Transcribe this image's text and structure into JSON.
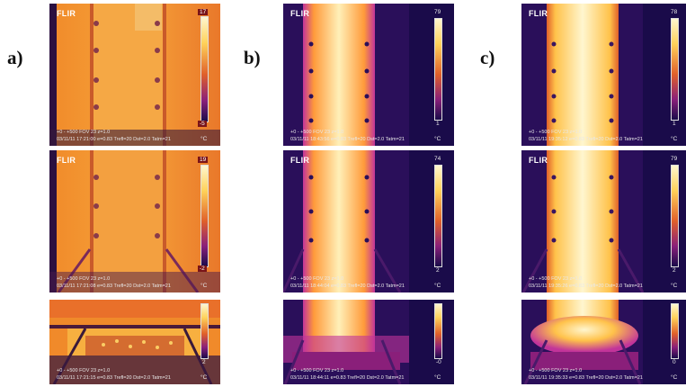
{
  "labels": {
    "a": "a)",
    "b": "b)",
    "c": "c)"
  },
  "colors": {
    "palette_low": "#1a0b4a",
    "palette_mid": "#c2349a",
    "palette_high": "#ffd25a",
    "palette_top": "#fff6cf"
  },
  "thermograms": {
    "a1": {
      "logo": "FLIR",
      "line1": "+0 - +500  FOV 23 z=1.0",
      "line2": "03/11/11 17:21:00 e=0.83 Trefl=20 Dst=2.0 Tatm=21",
      "scale_max": "17",
      "scale_min": "-5",
      "unit": "°C"
    },
    "a2": {
      "logo": "FLIR",
      "line1": "+0 - +500  FOV 23 z=1.0",
      "line2": "03/11/11 17:21:08 e=0.83 Trefl=20 Dst=2.0 Tatm=21",
      "scale_max": "19",
      "scale_min": "-2",
      "unit": "°C"
    },
    "a3": {
      "logo": "",
      "line1": "+0 - +500  FOV 23 z=1.0",
      "line2": "03/11/11 17:21:15 e=0.83 Trefl=20 Dst=2.0 Tatm=21",
      "scale_max": "",
      "scale_min": "2",
      "unit": "°C"
    },
    "b1": {
      "logo": "FLIR",
      "line1": "+0 - +500  FOV 23 z=1.0",
      "line2": "03/11/11 18:43:56 e=0.83 Trefl=20 Dst=2.0 Tatm=21",
      "scale_max": "79",
      "scale_min": "1",
      "unit": "°C"
    },
    "b2": {
      "logo": "FLIR",
      "line1": "+0 - +500  FOV 23 z=1.0",
      "line2": "03/11/11 18:44:04 e=0.83 Trefl=20 Dst=2.0 Tatm=21",
      "scale_max": "74",
      "scale_min": "2",
      "unit": "°C"
    },
    "b3": {
      "logo": "",
      "line1": "+0 - +500  FOV 23 z=1.0",
      "line2": "03/11/11 18:44:11 e=0.83 Trefl=20 Dst=2.0 Tatm=21",
      "scale_max": "",
      "scale_min": "-0",
      "unit": "°C"
    },
    "c1": {
      "logo": "FLIR",
      "line1": "+0 - +500  FOV 23 z=1.0",
      "line2": "03/11/11 19:35:12 e=0.83 Trefl=20 Dst=2.0 Tatm=21",
      "scale_max": "78",
      "scale_min": "1",
      "unit": "°C"
    },
    "c2": {
      "logo": "FLIR",
      "line1": "+0 - +500  FOV 23 z=1.0",
      "line2": "03/11/11 19:35:26 e=0.83 Trefl=20 Dst=2.0 Tatm=21",
      "scale_max": "79",
      "scale_min": "2",
      "unit": "°C"
    },
    "c3": {
      "logo": "",
      "line1": "+0 - +500  FOV 23 z=1.0",
      "line2": "03/11/11 19:35:33 e=0.83 Trefl=20 Dst=2.0 Tatm=21",
      "scale_max": "",
      "scale_min": "0",
      "unit": "°C"
    }
  }
}
